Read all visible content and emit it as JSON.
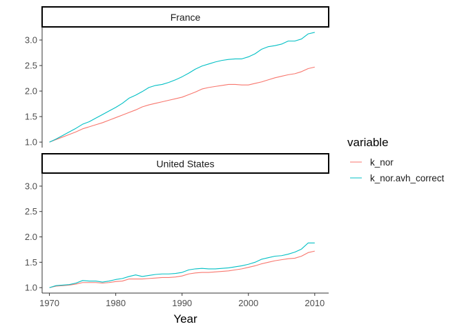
{
  "chart_data": {
    "type": "line",
    "facet_variable": "country",
    "panels": [
      {
        "name": "France",
        "series": [
          {
            "name": "k_nor",
            "x": [
              1970,
              1971,
              1972,
              1973,
              1974,
              1975,
              1976,
              1977,
              1978,
              1979,
              1980,
              1981,
              1982,
              1983,
              1984,
              1985,
              1986,
              1987,
              1988,
              1989,
              1990,
              1991,
              1992,
              1993,
              1994,
              1995,
              1996,
              1997,
              1998,
              1999,
              2000,
              2001,
              2002,
              2003,
              2004,
              2005,
              2006,
              2007,
              2008,
              2009,
              2010
            ],
            "y": [
              1.0,
              1.05,
              1.1,
              1.15,
              1.2,
              1.26,
              1.3,
              1.34,
              1.38,
              1.43,
              1.48,
              1.53,
              1.58,
              1.63,
              1.69,
              1.73,
              1.76,
              1.79,
              1.82,
              1.85,
              1.88,
              1.93,
              1.98,
              2.04,
              2.07,
              2.09,
              2.11,
              2.13,
              2.13,
              2.12,
              2.12,
              2.15,
              2.18,
              2.22,
              2.26,
              2.29,
              2.32,
              2.34,
              2.38,
              2.44,
              2.47
            ]
          },
          {
            "name": "k_nor.avh_correct",
            "x": [
              1970,
              1971,
              1972,
              1973,
              1974,
              1975,
              1976,
              1977,
              1978,
              1979,
              1980,
              1981,
              1982,
              1983,
              1984,
              1985,
              1986,
              1987,
              1988,
              1989,
              1990,
              1991,
              1992,
              1993,
              1994,
              1995,
              1996,
              1997,
              1998,
              1999,
              2000,
              2001,
              2002,
              2003,
              2004,
              2005,
              2006,
              2007,
              2008,
              2009,
              2010
            ],
            "y": [
              1.0,
              1.06,
              1.13,
              1.2,
              1.27,
              1.35,
              1.4,
              1.47,
              1.54,
              1.61,
              1.68,
              1.76,
              1.86,
              1.92,
              1.99,
              2.07,
              2.11,
              2.13,
              2.17,
              2.22,
              2.28,
              2.35,
              2.43,
              2.49,
              2.53,
              2.57,
              2.6,
              2.62,
              2.63,
              2.63,
              2.67,
              2.73,
              2.82,
              2.87,
              2.89,
              2.92,
              2.98,
              2.98,
              3.02,
              3.12,
              3.15
            ]
          }
        ]
      },
      {
        "name": "United States",
        "series": [
          {
            "name": "k_nor",
            "x": [
              1970,
              1971,
              1972,
              1973,
              1974,
              1975,
              1976,
              1977,
              1978,
              1979,
              1980,
              1981,
              1982,
              1983,
              1984,
              1985,
              1986,
              1987,
              1988,
              1989,
              1990,
              1991,
              1992,
              1993,
              1994,
              1995,
              1996,
              1997,
              1998,
              1999,
              2000,
              2001,
              2002,
              2003,
              2004,
              2005,
              2006,
              2007,
              2008,
              2009,
              2010
            ],
            "y": [
              1.0,
              1.03,
              1.04,
              1.05,
              1.07,
              1.1,
              1.1,
              1.1,
              1.09,
              1.1,
              1.12,
              1.13,
              1.17,
              1.17,
              1.17,
              1.18,
              1.19,
              1.2,
              1.2,
              1.21,
              1.23,
              1.27,
              1.29,
              1.3,
              1.3,
              1.31,
              1.32,
              1.33,
              1.35,
              1.37,
              1.4,
              1.43,
              1.47,
              1.5,
              1.53,
              1.55,
              1.57,
              1.58,
              1.62,
              1.69,
              1.72
            ]
          },
          {
            "name": "k_nor.avh_correct",
            "x": [
              1970,
              1971,
              1972,
              1973,
              1974,
              1975,
              1976,
              1977,
              1978,
              1979,
              1980,
              1981,
              1982,
              1983,
              1984,
              1985,
              1986,
              1987,
              1988,
              1989,
              1990,
              1991,
              1992,
              1993,
              1994,
              1995,
              1996,
              1997,
              1998,
              1999,
              2000,
              2001,
              2002,
              2003,
              2004,
              2005,
              2006,
              2007,
              2008,
              2009,
              2010
            ],
            "y": [
              1.0,
              1.04,
              1.05,
              1.06,
              1.09,
              1.14,
              1.13,
              1.13,
              1.11,
              1.13,
              1.16,
              1.18,
              1.22,
              1.25,
              1.22,
              1.24,
              1.26,
              1.27,
              1.27,
              1.28,
              1.3,
              1.35,
              1.37,
              1.38,
              1.37,
              1.37,
              1.38,
              1.39,
              1.41,
              1.43,
              1.46,
              1.5,
              1.56,
              1.59,
              1.62,
              1.63,
              1.66,
              1.7,
              1.76,
              1.88,
              1.88
            ]
          }
        ]
      }
    ],
    "series_colors": {
      "k_nor": "#F8766D",
      "k_nor.avh_correct": "#00BFC4"
    },
    "xlabel": "Year",
    "ylabel": "",
    "xlim": [
      1968.9,
      2012.1
    ],
    "ylim": [
      0.893,
      3.257
    ],
    "x_ticks": [
      1970,
      1980,
      1990,
      2000,
      2010
    ],
    "y_ticks": [
      1.0,
      1.5,
      2.0,
      2.5,
      3.0
    ],
    "y_tick_labels": [
      "1.0",
      "1.5",
      "2.0",
      "2.5",
      "3.0"
    ],
    "grid": false,
    "legend": {
      "title": "variable",
      "position": "right",
      "entries": [
        "k_nor",
        "k_nor.avh_correct"
      ]
    }
  }
}
